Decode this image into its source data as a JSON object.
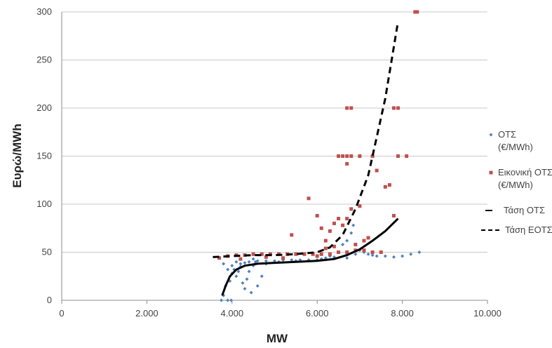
{
  "chart_data": {
    "type": "scatter",
    "title": "",
    "xlabel": "MW",
    "ylabel": "Ευρώ/MWh",
    "xlim": [
      0,
      10000
    ],
    "ylim": [
      0,
      300
    ],
    "x_ticks": [
      0,
      2000,
      4000,
      6000,
      8000,
      10000
    ],
    "x_tick_labels": [
      "0",
      "2.000",
      "4.000",
      "6.000",
      "8.000",
      "10.000"
    ],
    "y_ticks": [
      0,
      50,
      100,
      150,
      200,
      250,
      300
    ],
    "y_tick_labels": [
      "0",
      "50",
      "100",
      "150",
      "200",
      "250",
      "300"
    ],
    "grid": "horizontal",
    "legend_position": "right",
    "series": [
      {
        "name": "ΟΤΣ (€/MWh)",
        "label_lines": [
          "ΟΤΣ",
          "(€/MWh)"
        ],
        "kind": "scatter",
        "marker": "diamond",
        "color": "#4f81bd",
        "points": [
          [
            3750,
            0
          ],
          [
            3800,
            5
          ],
          [
            3850,
            15
          ],
          [
            3900,
            0
          ],
          [
            3950,
            20
          ],
          [
            3980,
            0
          ],
          [
            4000,
            28
          ],
          [
            4050,
            32
          ],
          [
            4100,
            25
          ],
          [
            4150,
            30
          ],
          [
            4200,
            35
          ],
          [
            4250,
            18
          ],
          [
            4300,
            12
          ],
          [
            4350,
            22
          ],
          [
            4400,
            30
          ],
          [
            4450,
            8
          ],
          [
            4500,
            36
          ],
          [
            4550,
            40
          ],
          [
            4600,
            15
          ],
          [
            4700,
            25
          ],
          [
            4800,
            38
          ],
          [
            3800,
            38
          ],
          [
            3900,
            32
          ],
          [
            4000,
            36
          ],
          [
            4100,
            40
          ],
          [
            4200,
            38
          ],
          [
            4300,
            39
          ],
          [
            4400,
            40
          ],
          [
            4600,
            41
          ],
          [
            4800,
            41
          ],
          [
            5000,
            41
          ],
          [
            5200,
            42
          ],
          [
            5400,
            42
          ],
          [
            5600,
            42
          ],
          [
            5800,
            42
          ],
          [
            6000,
            42
          ],
          [
            6200,
            44
          ],
          [
            6400,
            45
          ],
          [
            6500,
            50
          ],
          [
            6600,
            58
          ],
          [
            6700,
            62
          ],
          [
            6800,
            70
          ],
          [
            6850,
            78
          ],
          [
            6900,
            48
          ],
          [
            7000,
            52
          ],
          [
            7100,
            50
          ],
          [
            7200,
            48
          ],
          [
            7400,
            46
          ],
          [
            7600,
            46
          ],
          [
            7800,
            45
          ],
          [
            8000,
            46
          ],
          [
            8200,
            48
          ],
          [
            8400,
            50
          ],
          [
            4500,
            43
          ],
          [
            5100,
            40
          ],
          [
            5500,
            41
          ],
          [
            6100,
            43
          ],
          [
            6300,
            46
          ],
          [
            6700,
            44
          ],
          [
            7300,
            47
          ]
        ]
      },
      {
        "name": "Εικονική ΟΤΣ (€/MWh)",
        "label_lines": [
          "Εικονική ΟΤΣ",
          "(€/MWh)"
        ],
        "kind": "scatter",
        "marker": "square",
        "color": "#c0504d",
        "points": [
          [
            3700,
            44
          ],
          [
            3900,
            46
          ],
          [
            4100,
            47
          ],
          [
            4300,
            47
          ],
          [
            4500,
            48
          ],
          [
            4700,
            48
          ],
          [
            4900,
            48
          ],
          [
            5100,
            48
          ],
          [
            5300,
            48
          ],
          [
            5500,
            48
          ],
          [
            5700,
            48
          ],
          [
            5900,
            48
          ],
          [
            6100,
            48
          ],
          [
            6300,
            48
          ],
          [
            6500,
            50
          ],
          [
            6700,
            50
          ],
          [
            6900,
            52
          ],
          [
            7100,
            52
          ],
          [
            7300,
            50
          ],
          [
            7500,
            50
          ],
          [
            5400,
            68
          ],
          [
            5800,
            106
          ],
          [
            6000,
            88
          ],
          [
            6100,
            75
          ],
          [
            6200,
            62
          ],
          [
            6300,
            72
          ],
          [
            6400,
            80
          ],
          [
            6500,
            85
          ],
          [
            6600,
            78
          ],
          [
            6700,
            85
          ],
          [
            6800,
            95
          ],
          [
            7000,
            98
          ],
          [
            7200,
            65
          ],
          [
            7600,
            118
          ],
          [
            7800,
            88
          ],
          [
            6500,
            150
          ],
          [
            6600,
            150
          ],
          [
            6700,
            150
          ],
          [
            6800,
            150
          ],
          [
            7000,
            150
          ],
          [
            7300,
            150
          ],
          [
            7900,
            150
          ],
          [
            8100,
            150
          ],
          [
            6700,
            200
          ],
          [
            6800,
            200
          ],
          [
            7800,
            200
          ],
          [
            7900,
            200
          ],
          [
            8300,
            300
          ],
          [
            8350,
            300
          ],
          [
            6700,
            142
          ],
          [
            4200,
            43
          ],
          [
            4800,
            45
          ],
          [
            5200,
            44
          ],
          [
            6000,
            46
          ],
          [
            6200,
            54
          ],
          [
            6400,
            56
          ],
          [
            6900,
            58
          ],
          [
            7100,
            62
          ],
          [
            7400,
            135
          ],
          [
            7700,
            120
          ]
        ]
      },
      {
        "name": "Τάση ΟΤΣ",
        "kind": "trend",
        "line_style": "solid",
        "color": "#000000",
        "points": [
          [
            3770,
            5
          ],
          [
            3850,
            15
          ],
          [
            3950,
            25
          ],
          [
            4100,
            32
          ],
          [
            4300,
            36
          ],
          [
            4600,
            38
          ],
          [
            5000,
            39
          ],
          [
            5500,
            40
          ],
          [
            6000,
            41
          ],
          [
            6400,
            43
          ],
          [
            6700,
            47
          ],
          [
            7000,
            53
          ],
          [
            7300,
            62
          ],
          [
            7600,
            72
          ],
          [
            7900,
            85
          ]
        ]
      },
      {
        "name": "Τάση ΕΟΤΣ",
        "kind": "trend",
        "line_style": "dashed",
        "color": "#000000",
        "points": [
          [
            3550,
            45
          ],
          [
            4000,
            46
          ],
          [
            4500,
            47
          ],
          [
            5000,
            47
          ],
          [
            5500,
            48
          ],
          [
            6000,
            50
          ],
          [
            6300,
            55
          ],
          [
            6600,
            68
          ],
          [
            6900,
            95
          ],
          [
            7200,
            130
          ],
          [
            7400,
            170
          ],
          [
            7600,
            210
          ],
          [
            7750,
            250
          ],
          [
            7900,
            290
          ]
        ]
      }
    ]
  }
}
